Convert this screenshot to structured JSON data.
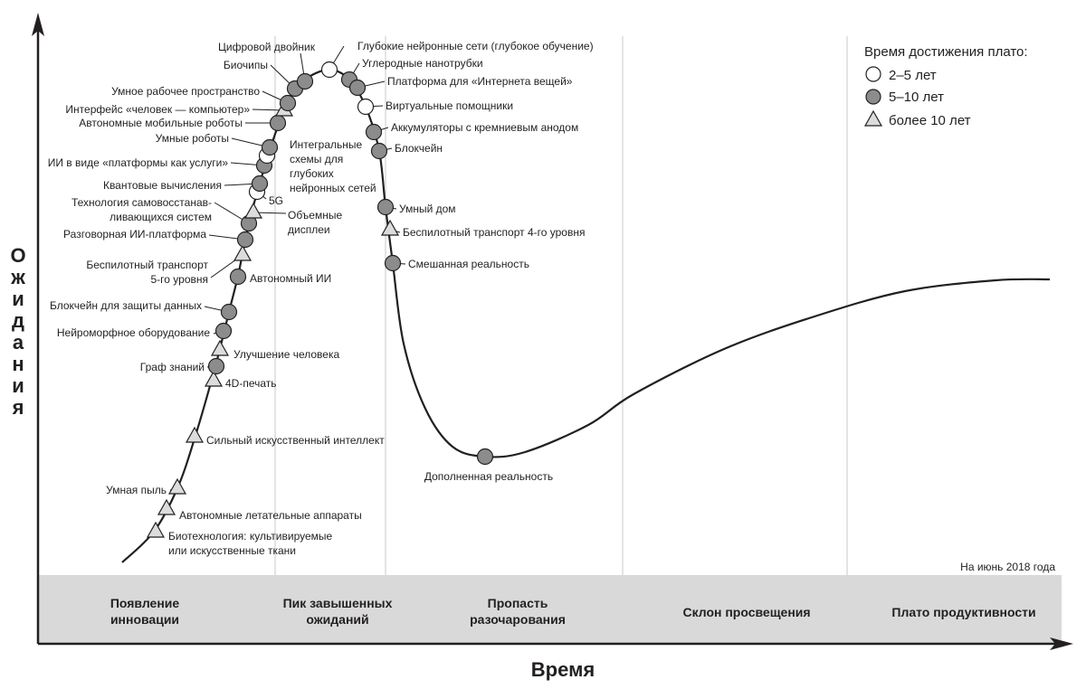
{
  "axes": {
    "y_label": "Ожидания",
    "x_label": "Время"
  },
  "as_of": "На июнь 2018 года",
  "legend": {
    "title": "Время достижения плато:",
    "items": [
      {
        "symbol": "white-circle",
        "label": "2–5 лет"
      },
      {
        "symbol": "gray-circle",
        "label": "5–10 лет"
      },
      {
        "symbol": "triangle",
        "label": "более 10 лет"
      }
    ]
  },
  "phases": [
    [
      "Появление",
      "инновации"
    ],
    [
      "Пик завышенных",
      "ожиданий"
    ],
    [
      "Пропасть",
      "разочарования"
    ],
    [
      "Склон просвещения"
    ],
    [
      "Плато продуктивности"
    ]
  ],
  "colors": {
    "gray": "#8c8c8c",
    "white": "#ffffff",
    "triangle": "#dcdcdc",
    "band": "#d9d9d9"
  },
  "technologies": [
    {
      "label": [
        "Биотехнология: культивируемые",
        "или искусственные ткани"
      ],
      "plateau": "более 10 лет"
    },
    {
      "label": [
        "Автономные летательные аппараты"
      ],
      "plateau": "более 10 лет"
    },
    {
      "label": [
        "Умная пыль"
      ],
      "plateau": "более 10 лет"
    },
    {
      "label": [
        "Сильный искусственный интеллект"
      ],
      "plateau": "более 10 лет"
    },
    {
      "label": [
        "4D-печать"
      ],
      "plateau": "более 10 лет"
    },
    {
      "label": [
        "Граф знаний"
      ],
      "plateau": "5–10 лет"
    },
    {
      "label": [
        "Улучшение человека"
      ],
      "plateau": "более 10 лет"
    },
    {
      "label": [
        "Нейроморфное оборудование"
      ],
      "plateau": "5–10 лет"
    },
    {
      "label": [
        "Блокчейн для защиты данных"
      ],
      "plateau": "5–10 лет"
    },
    {
      "label": [
        "Автономный ИИ"
      ],
      "plateau": "5–10 лет"
    },
    {
      "label": [
        "Беспилотный транспорт",
        "5-го уровня"
      ],
      "plateau": "более 10 лет"
    },
    {
      "label": [
        "Разговорная ИИ-платформа"
      ],
      "plateau": "5–10 лет"
    },
    {
      "label": [
        "Технология самовосстанав-",
        "ливающихся систем"
      ],
      "plateau": "5–10 лет"
    },
    {
      "label": [
        "Объемные",
        "дисплеи"
      ],
      "plateau": "более 10 лет"
    },
    {
      "label": [
        "5G"
      ],
      "plateau": "2–5 лет"
    },
    {
      "label": [
        "Квантовые вычисления"
      ],
      "plateau": "5–10 лет"
    },
    {
      "label": [
        "ИИ в виде «платформы как услуги»"
      ],
      "plateau": "5–10 лет"
    },
    {
      "label": [
        "Интегральные",
        "схемы для",
        "глубоких",
        "нейронных сетей"
      ],
      "plateau": "2–5 лет"
    },
    {
      "label": [
        "Умные роботы"
      ],
      "plateau": "5–10 лет"
    },
    {
      "label": [
        "Автономные мобильные роботы"
      ],
      "plateau": "5–10 лет"
    },
    {
      "label": [
        "Интерфейс «человек — компьютер»"
      ],
      "plateau": "более 10 лет"
    },
    {
      "label": [
        "Умное рабочее пространство"
      ],
      "plateau": "5–10 лет"
    },
    {
      "label": [
        "Биочипы"
      ],
      "plateau": "5–10 лет"
    },
    {
      "label": [
        "Цифровой двойник"
      ],
      "plateau": "5–10 лет"
    },
    {
      "label": [
        "Глубокие нейронные сети (глубокое обучение)"
      ],
      "plateau": "2–5 лет"
    },
    {
      "label": [
        "Углеродные нанотрубки"
      ],
      "plateau": "5–10 лет"
    },
    {
      "label": [
        "Платформа для «Интернета вещей»"
      ],
      "plateau": "5–10 лет"
    },
    {
      "label": [
        "Виртуальные помощники"
      ],
      "plateau": "2–5 лет"
    },
    {
      "label": [
        "Аккумуляторы с кремниевым анодом"
      ],
      "plateau": "5–10 лет"
    },
    {
      "label": [
        "Блокчейн"
      ],
      "plateau": "5–10 лет"
    },
    {
      "label": [
        "Умный дом"
      ],
      "plateau": "5–10 лет"
    },
    {
      "label": [
        "Беспилотный транспорт 4-го уровня"
      ],
      "plateau": "более 10 лет"
    },
    {
      "label": [
        "Смешанная реальность"
      ],
      "plateau": "5–10 лет"
    },
    {
      "label": [
        "Дополненная реальность"
      ],
      "plateau": "5–10 лет"
    }
  ]
}
